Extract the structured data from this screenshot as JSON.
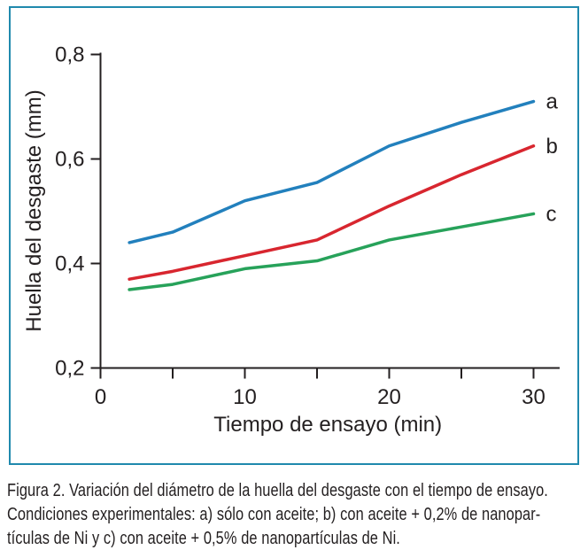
{
  "chart_data": {
    "type": "line",
    "title": "",
    "xlabel": "Tiempo de ensayo (min)",
    "ylabel": "Huella del desgaste (mm)",
    "x": [
      2,
      5,
      10,
      15,
      20,
      25,
      30
    ],
    "series": [
      {
        "name": "a",
        "color": "#2280bd",
        "values": [
          0.44,
          0.46,
          0.52,
          0.555,
          0.625,
          0.67,
          0.71
        ]
      },
      {
        "name": "b",
        "color": "#d8262f",
        "values": [
          0.37,
          0.385,
          0.415,
          0.445,
          0.51,
          0.57,
          0.625
        ]
      },
      {
        "name": "c",
        "color": "#27a25a",
        "values": [
          0.35,
          0.36,
          0.39,
          0.405,
          0.445,
          0.47,
          0.495
        ]
      }
    ],
    "xlim": [
      0,
      31.5
    ],
    "ylim": [
      0.2,
      0.8
    ],
    "x_ticks": [
      0,
      5,
      10,
      15,
      20,
      25,
      30
    ],
    "x_tick_labels": [
      "0",
      "",
      "10",
      "",
      "20",
      "",
      "30"
    ],
    "y_ticks": [
      0.2,
      0.4,
      0.6,
      0.8
    ],
    "y_tick_labels": [
      "0,2",
      "0,4",
      "0,6",
      "0,8"
    ],
    "grid": false,
    "legend_position": "end-of-line"
  },
  "caption": {
    "lines": [
      "Figura 2. Variación del diámetro de la huella del desgaste con el tiempo de ensayo.",
      "Condiciones experimentales: a) sólo con aceite; b) con aceite + 0,2% de nanopar-",
      "tículas de Ni y c) con aceite + 0,5% de nanopartículas de Ni."
    ]
  },
  "colors": {
    "frame": "#2089ad",
    "axis": "#231f20",
    "text": "#231f20"
  }
}
